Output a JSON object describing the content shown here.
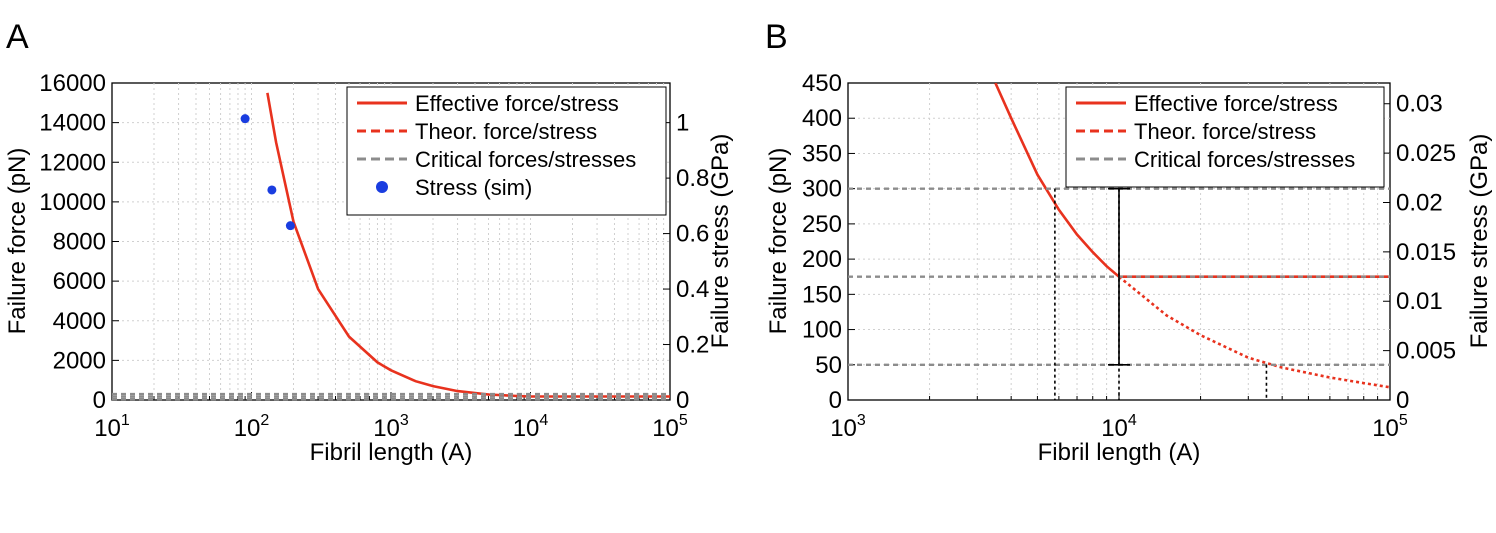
{
  "colors": {
    "effective": "#e8321e",
    "theoretical": "#e8321e",
    "critical": "#8c8c8c",
    "sim": "#1a3de0",
    "grid": "#d0d0d0"
  },
  "chart_data": [
    {
      "type": "line",
      "panel_label": "A",
      "xlabel": "Fibril length (A)",
      "ylabel": "Failure force (pN)",
      "y2label": "Failure stress (GPa)",
      "xscale": "log",
      "xlim": [
        10,
        100000
      ],
      "ylim": [
        0,
        16000
      ],
      "y2lim": [
        0,
        1.1429
      ],
      "x_ticks": [
        {
          "base": "10",
          "exp": "1"
        },
        {
          "base": "10",
          "exp": "2"
        },
        {
          "base": "10",
          "exp": "3"
        },
        {
          "base": "10",
          "exp": "4"
        },
        {
          "base": "10",
          "exp": "5"
        }
      ],
      "y_ticks": [
        0,
        2000,
        4000,
        6000,
        8000,
        10000,
        12000,
        14000,
        16000
      ],
      "y2_ticks": [
        0,
        0.2,
        0.4,
        0.6,
        0.8,
        1
      ],
      "grid": true,
      "legend_position": "top-right",
      "legend": [
        "Effective force/stress",
        "Theor. force/stress",
        "Critical forces/stresses",
        "Stress (sim)"
      ],
      "series": [
        {
          "name": "Effective force/stress",
          "style": "solid",
          "x": [
            130,
            150,
            200,
            300,
            500,
            800,
            1000,
            1500,
            2000,
            3000,
            5000,
            8000,
            10000,
            30000,
            100000
          ],
          "y": [
            15500,
            13000,
            9000,
            5600,
            3200,
            1900,
            1500,
            950,
            700,
            450,
            280,
            200,
            175,
            175,
            175
          ]
        },
        {
          "name": "Critical forces/stresses",
          "style": "dashed",
          "y_constant": [
            300,
            175,
            50
          ]
        },
        {
          "name": "Stress (sim)",
          "style": "marker",
          "x": [
            90,
            140,
            190
          ],
          "y": [
            14200,
            10600,
            8800
          ]
        }
      ]
    },
    {
      "type": "line",
      "panel_label": "B",
      "xlabel": "Fibril length (A)",
      "ylabel": "Failure force (pN)",
      "y2label": "Failure stress (GPa)",
      "xscale": "log",
      "xlim": [
        1000,
        100000
      ],
      "ylim": [
        0,
        450
      ],
      "y2lim": [
        0,
        0.0321
      ],
      "x_ticks": [
        {
          "base": "10",
          "exp": "3"
        },
        {
          "base": "10",
          "exp": "4"
        },
        {
          "base": "10",
          "exp": "5"
        }
      ],
      "y_ticks": [
        0,
        50,
        100,
        150,
        200,
        250,
        300,
        350,
        400,
        450
      ],
      "y2_ticks": [
        "0",
        "0.005",
        "0.01",
        "0.015",
        "0.02",
        "0.025",
        "0.03"
      ],
      "grid": true,
      "legend_position": "top-right",
      "legend": [
        "Effective force/stress",
        "Theor. force/stress",
        "Critical forces/stresses"
      ],
      "series": [
        {
          "name": "Effective force/stress",
          "style": "solid",
          "x": [
            3500,
            4000,
            5000,
            6000,
            7000,
            8000,
            9000,
            10000,
            30000,
            100000
          ],
          "y": [
            450,
            400,
            320,
            270,
            235,
            210,
            190,
            175,
            175,
            175
          ]
        },
        {
          "name": "Theor. force/stress",
          "style": "dotted",
          "x": [
            10000,
            15000,
            20000,
            30000,
            40000,
            60000,
            80000,
            100000
          ],
          "y": [
            175,
            120,
            92,
            60,
            46,
            32,
            24,
            18
          ]
        },
        {
          "name": "Critical forces/stresses",
          "style": "dashed",
          "y_constant": [
            300,
            175,
            50
          ]
        }
      ],
      "vertical_markers": [
        {
          "x": 5800,
          "y_top": 300
        },
        {
          "x": 10000,
          "y_top": 300,
          "error_bar": [
            50,
            300
          ]
        },
        {
          "x": 35000,
          "y_top": 50
        }
      ]
    }
  ]
}
